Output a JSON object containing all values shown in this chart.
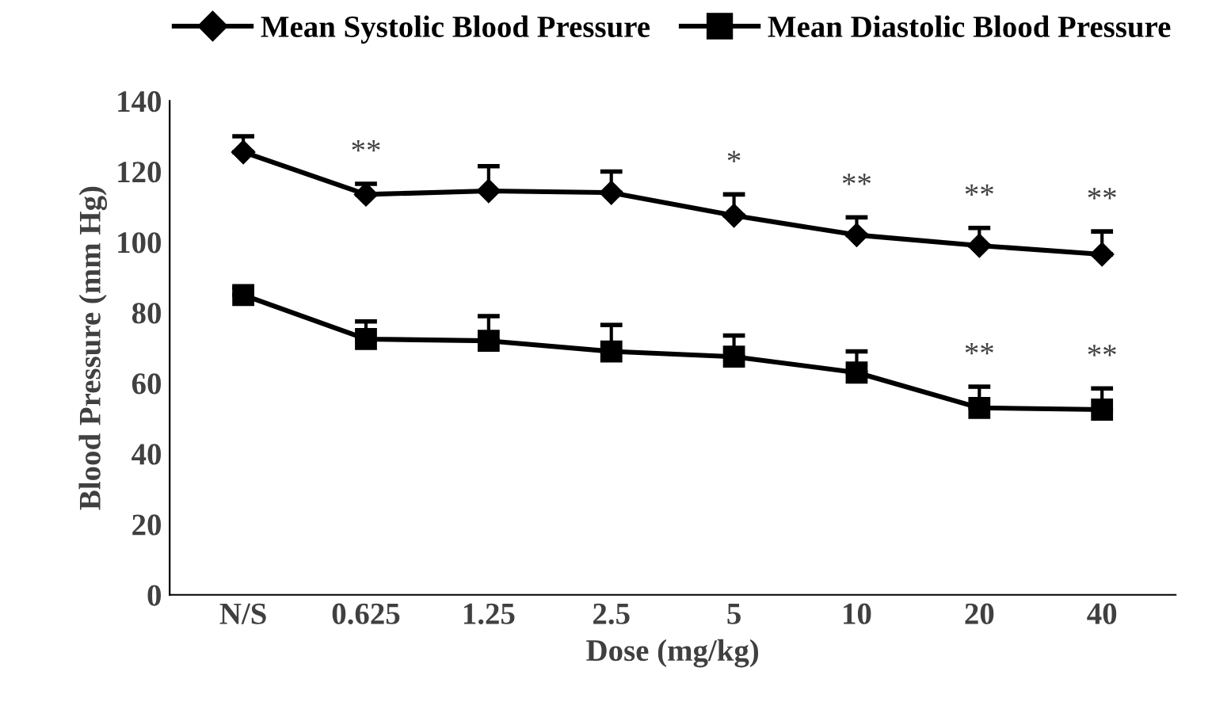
{
  "chart_data": {
    "type": "line",
    "xlabel": "Dose (mg/kg)",
    "ylabel": "Blood Pressure (mm Hg)",
    "categories": [
      "N/S",
      "0.625",
      "1.25",
      "2.5",
      "5",
      "10",
      "20",
      "40"
    ],
    "series": [
      {
        "name": "Mean Systolic Blood Pressure",
        "color": "#000000",
        "marker": "diamond",
        "values": [
          125.5,
          113.5,
          114.5,
          114,
          107.5,
          102,
          99,
          96.5
        ],
        "errors": [
          [
            125.5,
            130
          ],
          [
            113.5,
            116.5
          ],
          [
            114.5,
            121.5
          ],
          [
            114,
            120
          ],
          [
            107.5,
            113.5
          ],
          [
            102,
            107
          ],
          [
            99,
            104
          ],
          [
            96.5,
            103
          ]
        ]
      },
      {
        "name": "Mean Diastolic Blood Pressure",
        "color": "#000000",
        "marker": "square",
        "values": [
          85,
          72.5,
          72,
          69,
          67.5,
          63,
          53,
          52.5
        ],
        "errors": [
          [
            85,
            87
          ],
          [
            72.5,
            77.5
          ],
          [
            72,
            79
          ],
          [
            69,
            76.5
          ],
          [
            67.5,
            73.5
          ],
          [
            63,
            69
          ],
          [
            53,
            59
          ],
          [
            52.5,
            58.5
          ]
        ]
      }
    ],
    "ylim": [
      0,
      140
    ],
    "yticks": [
      0,
      20,
      40,
      60,
      80,
      100,
      120,
      140
    ],
    "grid": false,
    "legend": "top",
    "line_style": "solid",
    "annotations": [
      {
        "text": "**",
        "x": "0.625",
        "y": 113.5
      },
      {
        "text": "*",
        "x": "5",
        "y": 107.5
      },
      {
        "text": "**",
        "x": "10",
        "y": 102
      },
      {
        "text": "**",
        "x": "20",
        "y": 99
      },
      {
        "text": "**",
        "x": "40",
        "y": 96.5
      },
      {
        "text": "**",
        "x": "20",
        "y": 53
      },
      {
        "text": "**",
        "x": "40",
        "y": 52.5
      }
    ]
  }
}
